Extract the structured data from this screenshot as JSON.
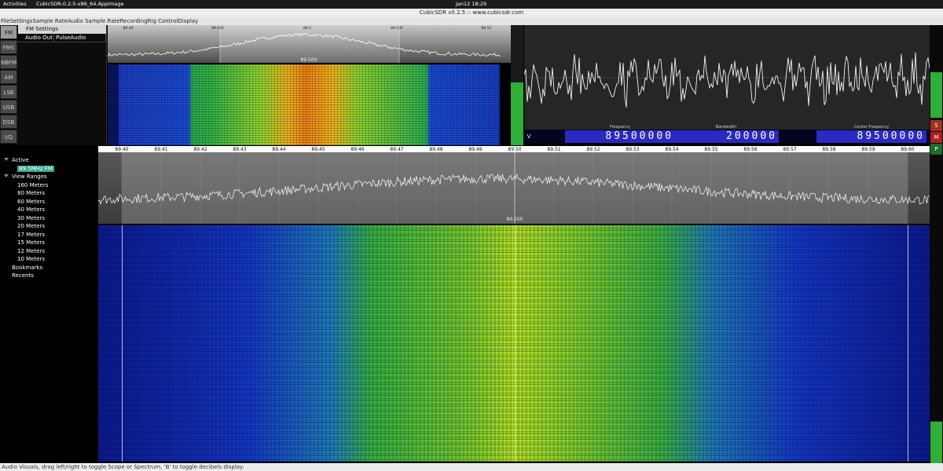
{
  "top_bar": {
    "activities": "Activities",
    "app": "CubicSDR-0.2.5-x86_64.AppImage",
    "clock": "Jan12 18:29"
  },
  "window_title": "CubicSDR v0.2.5 :: www.cubicsdr.com",
  "menu": [
    "File",
    "Settings",
    "Sample Rate",
    "Audio Sample Rate",
    "Recording",
    "Rig Control",
    "Display"
  ],
  "modes": [
    "FM",
    "FMS",
    "NBFM",
    "AM",
    "LSB",
    "USB",
    "DSB",
    "I/Q"
  ],
  "modem_settings": {
    "title": "FM Settings",
    "rows": [
      [
        "Audio Out",
        "PulseAudio"
      ]
    ]
  },
  "mini_spectrum": {
    "ticks": [
      "89.49",
      "89.495",
      "89.5",
      "89.505",
      "89.51"
    ],
    "center": "89.500"
  },
  "frequency_display": {
    "mode_button": "V",
    "fields": [
      {
        "label": "Frequency",
        "value": "89500000"
      },
      {
        "label": "Bandwidth",
        "value": "200000"
      },
      {
        "label": "Center Frequency",
        "value": "89500000"
      }
    ]
  },
  "side_buttons": [
    "S",
    "M",
    "P"
  ],
  "tree": {
    "active": "Active",
    "active_items": [
      "89.5MHz FM"
    ],
    "view_ranges": "View Ranges",
    "ranges": [
      "160 Meters",
      "80 Meters",
      "60 Meters",
      "40 Meters",
      "30 Meters",
      "20 Meters",
      "17 Meters",
      "15 Meters",
      "12 Meters",
      "10 Meters"
    ],
    "bookmarks": "Bookmarks",
    "recents": "Recents"
  },
  "spectrum": {
    "ticks": [
      "89.40",
      "89.41",
      "89.42",
      "89.43",
      "89.44",
      "89.45",
      "89.46",
      "89.47",
      "89.48",
      "89.49",
      "89.50",
      "89.51",
      "89.52",
      "89.53",
      "89.54",
      "89.55",
      "89.56",
      "89.57",
      "89.58",
      "89.59",
      "89.60"
    ],
    "center": "89.500"
  },
  "status": "Audio Visuals, drag left/right to toggle Scope or Spectrum, 'B' to toggle decibels display."
}
